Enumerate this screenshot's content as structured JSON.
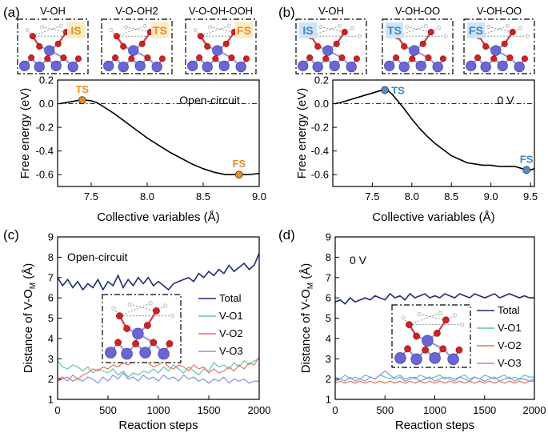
{
  "figure": {
    "colors": {
      "axis": "#000000",
      "ts_orange": "#f08a24",
      "fs_blue": "#4f8fcf",
      "label_orange": "#f08a24",
      "label_blue": "#3d86c6",
      "badge_orange_bg": "#fdebc2",
      "badge_blue_bg": "#cfe3f6",
      "total": "#1f2a7a",
      "o1": "#5fc7b0",
      "o2": "#e8735e",
      "o3": "#8a8ee8",
      "atom_v": "#6b66d6",
      "atom_o": "#d42020",
      "atom_h": "#f2f2f2"
    }
  },
  "chart_data": [
    {
      "id": "a",
      "panel_label": "(a)",
      "type": "line",
      "xlabel": "Collective variables (Å)",
      "ylabel": "Free energy (eV)",
      "xlim": [
        7.2,
        9.0
      ],
      "ylim": [
        -0.7,
        0.2
      ],
      "xticks": [
        7.5,
        8.0,
        8.5,
        9.0
      ],
      "xtick_labels": [
        "7.5",
        "8.0",
        "8.5",
        "9.0"
      ],
      "yticks": [
        -0.6,
        -0.4,
        -0.2,
        0.0,
        0.2
      ],
      "ytick_labels": [
        "-0.6",
        "-0.4",
        "-0.2",
        "0.0",
        "0.2"
      ],
      "reference_line_y": 0.0,
      "condition_label": "Open-circuit",
      "x": [
        7.22,
        7.28,
        7.34,
        7.4,
        7.45,
        7.5,
        7.55,
        7.6,
        7.7,
        7.8,
        7.9,
        8.0,
        8.1,
        8.2,
        8.3,
        8.4,
        8.5,
        8.6,
        8.7,
        8.75,
        8.8,
        8.85,
        8.9,
        8.95,
        9.0
      ],
      "y": [
        0.0,
        0.01,
        0.02,
        0.03,
        0.03,
        0.025,
        0.01,
        -0.02,
        -0.08,
        -0.15,
        -0.22,
        -0.29,
        -0.35,
        -0.41,
        -0.46,
        -0.51,
        -0.55,
        -0.58,
        -0.6,
        -0.6,
        -0.6,
        -0.6,
        -0.6,
        -0.595,
        -0.59
      ],
      "points": [
        {
          "label": "TS",
          "x": 7.42,
          "y": 0.03,
          "color": "#f08a24"
        },
        {
          "label": "FS",
          "x": 8.82,
          "y": -0.6,
          "color": "#f08a24"
        }
      ],
      "snapshots": [
        {
          "title": "V-OH",
          "badge": "IS"
        },
        {
          "title": "V-O-OH2",
          "badge": "TS"
        },
        {
          "title": "V-O-OH-OOH",
          "badge": "FS"
        }
      ]
    },
    {
      "id": "b",
      "panel_label": "(b)",
      "type": "line",
      "xlabel": "Collective variables (Å)",
      "ylabel": "Free energy (eV)",
      "xlim": [
        7.0,
        9.55
      ],
      "ylim": [
        -0.7,
        0.2
      ],
      "xticks": [
        7.5,
        8.0,
        8.5,
        9.0,
        9.5
      ],
      "xtick_labels": [
        "7.5",
        "8.0",
        "8.5",
        "9.0",
        "9.5"
      ],
      "yticks": [
        -0.6,
        -0.4,
        -0.2,
        0.0,
        0.2
      ],
      "ytick_labels": [
        "-0.6",
        "-0.4",
        "-0.2",
        "0.0",
        "0.2"
      ],
      "reference_line_y": 0.0,
      "condition_label": "0 V",
      "x": [
        7.02,
        7.1,
        7.2,
        7.3,
        7.4,
        7.5,
        7.6,
        7.66,
        7.7,
        7.75,
        7.8,
        7.9,
        8.0,
        8.1,
        8.2,
        8.3,
        8.4,
        8.5,
        8.6,
        8.7,
        8.8,
        8.9,
        9.0,
        9.1,
        9.2,
        9.3,
        9.4,
        9.45,
        9.5,
        9.55
      ],
      "y": [
        0.0,
        0.01,
        0.03,
        0.05,
        0.07,
        0.09,
        0.11,
        0.12,
        0.11,
        0.08,
        0.04,
        -0.04,
        -0.13,
        -0.21,
        -0.28,
        -0.34,
        -0.39,
        -0.44,
        -0.47,
        -0.5,
        -0.51,
        -0.52,
        -0.52,
        -0.53,
        -0.53,
        -0.53,
        -0.55,
        -0.56,
        -0.56,
        -0.55
      ],
      "points": [
        {
          "label": "TS",
          "x": 7.66,
          "y": 0.115,
          "color": "#4f8fcf"
        },
        {
          "label": "FS",
          "x": 9.45,
          "y": -0.56,
          "color": "#4f8fcf"
        }
      ],
      "snapshots": [
        {
          "title": "V-OH",
          "badge": "IS"
        },
        {
          "title": "V-OH-OO",
          "badge": "TS"
        },
        {
          "title": "V-OH-OO",
          "badge": "FS"
        }
      ]
    },
    {
      "id": "c",
      "panel_label": "(c)",
      "type": "line",
      "xlabel": "Reaction steps",
      "ylabel": "Distance of V-O",
      "ylabel_sub": "M",
      "ylabel_unit": " (Å)",
      "xlim": [
        0,
        2000
      ],
      "ylim": [
        1,
        9
      ],
      "xticks": [
        0,
        500,
        1000,
        1500,
        2000
      ],
      "xtick_labels": [
        "0",
        "500",
        "1000",
        "1500",
        "2000"
      ],
      "yticks": [
        1,
        2,
        3,
        4,
        5,
        6,
        7,
        8,
        9
      ],
      "ytick_labels": [
        "1",
        "2",
        "3",
        "4",
        "5",
        "6",
        "7",
        "8",
        "9"
      ],
      "condition_label": "Open-circuit",
      "x": [
        0,
        50,
        100,
        150,
        200,
        250,
        300,
        350,
        400,
        450,
        500,
        550,
        600,
        650,
        700,
        750,
        800,
        850,
        900,
        950,
        1000,
        1050,
        1100,
        1150,
        1200,
        1250,
        1300,
        1350,
        1400,
        1450,
        1500,
        1550,
        1600,
        1650,
        1700,
        1750,
        1800,
        1850,
        1900,
        1950,
        2000
      ],
      "series": [
        {
          "name": "Total",
          "color": "#1f2a7a",
          "values": [
            7.0,
            6.6,
            6.9,
            6.5,
            6.8,
            6.4,
            6.7,
            6.5,
            6.9,
            6.4,
            6.8,
            6.6,
            7.1,
            6.5,
            6.9,
            6.6,
            7.0,
            6.7,
            7.0,
            6.6,
            6.8,
            6.6,
            6.4,
            6.7,
            6.8,
            6.9,
            7.0,
            6.8,
            7.2,
            7.0,
            7.3,
            7.1,
            7.4,
            7.2,
            7.6,
            7.3,
            7.5,
            7.7,
            7.4,
            7.6,
            8.2
          ]
        },
        {
          "name": "V-O1",
          "color": "#5fc7b0",
          "values": [
            2.9,
            2.6,
            2.5,
            2.7,
            2.6,
            2.4,
            2.6,
            2.3,
            2.5,
            2.4,
            2.3,
            2.5,
            2.2,
            2.4,
            2.1,
            2.3,
            2.2,
            2.4,
            2.3,
            2.5,
            2.3,
            2.6,
            2.4,
            2.7,
            2.5,
            2.3,
            2.6,
            2.4,
            2.2,
            2.5,
            2.4,
            2.8,
            2.6,
            2.7,
            2.5,
            2.8,
            2.6,
            2.9,
            2.7,
            2.9,
            3.0
          ]
        },
        {
          "name": "V-O2",
          "color": "#e8735e",
          "values": [
            1.9,
            2.0,
            2.1,
            1.9,
            2.0,
            2.2,
            2.3,
            2.5,
            2.4,
            2.6,
            2.5,
            2.7,
            2.6,
            2.8,
            2.7,
            2.9,
            2.8,
            3.0,
            2.8,
            2.6,
            2.7,
            2.9,
            2.6,
            2.5,
            2.7,
            2.6,
            2.4,
            2.7,
            2.5,
            2.6,
            2.3,
            2.5,
            2.3,
            2.4,
            2.6,
            2.4,
            2.7,
            2.5,
            2.8,
            2.7,
            3.1
          ]
        },
        {
          "name": "V-O3",
          "color": "#8a8ee8",
          "values": [
            2.0,
            2.1,
            1.9,
            2.2,
            2.0,
            1.9,
            2.1,
            2.0,
            1.8,
            2.1,
            1.9,
            2.2,
            2.0,
            2.3,
            2.0,
            2.1,
            1.9,
            2.2,
            2.0,
            2.1,
            1.9,
            2.2,
            2.0,
            2.1,
            1.9,
            2.2,
            2.0,
            2.1,
            1.9,
            2.0,
            1.8,
            2.0,
            1.9,
            2.1,
            1.8,
            2.0,
            1.9,
            2.0,
            1.8,
            1.9,
            1.9
          ]
        }
      ]
    },
    {
      "id": "d",
      "panel_label": "(d)",
      "type": "line",
      "xlabel": "Reaction steps",
      "ylabel": "Distance of V-O",
      "ylabel_sub": "M",
      "ylabel_unit": " (Å)",
      "xlim": [
        0,
        2000
      ],
      "ylim": [
        1,
        9
      ],
      "xticks": [
        0,
        500,
        1000,
        1500,
        2000
      ],
      "xtick_labels": [
        "0",
        "500",
        "1000",
        "1500",
        "2000"
      ],
      "yticks": [
        1,
        2,
        3,
        4,
        5,
        6,
        7,
        8,
        9
      ],
      "ytick_labels": [
        "1",
        "2",
        "3",
        "4",
        "5",
        "6",
        "7",
        "8",
        "9"
      ],
      "condition_label": "0 V",
      "x": [
        0,
        50,
        100,
        150,
        200,
        250,
        300,
        350,
        400,
        450,
        500,
        550,
        600,
        650,
        700,
        750,
        800,
        850,
        900,
        950,
        1000,
        1050,
        1100,
        1150,
        1200,
        1250,
        1300,
        1350,
        1400,
        1450,
        1500,
        1550,
        1600,
        1650,
        1700,
        1750,
        1800,
        1850,
        1900,
        1950,
        2000
      ],
      "series": [
        {
          "name": "Total",
          "color": "#1f2a7a",
          "values": [
            5.8,
            5.9,
            5.7,
            6.0,
            5.8,
            5.9,
            6.0,
            5.9,
            6.1,
            6.0,
            5.9,
            6.2,
            6.0,
            6.1,
            5.9,
            6.2,
            6.0,
            6.1,
            6.2,
            6.0,
            6.1,
            6.0,
            6.2,
            6.1,
            6.0,
            6.2,
            6.1,
            6.0,
            6.2,
            6.1,
            6.0,
            6.1,
            6.2,
            6.0,
            6.1,
            6.2,
            6.1,
            6.0,
            6.1,
            6.0,
            6.0
          ]
        },
        {
          "name": "V-O1",
          "color": "#5fc7b0",
          "values": [
            2.1,
            2.0,
            2.2,
            2.0,
            2.1,
            2.0,
            2.2,
            2.1,
            2.0,
            2.2,
            2.1,
            2.0,
            2.1,
            2.2,
            2.0,
            2.1,
            2.0,
            2.2,
            2.1,
            2.0,
            2.1,
            2.2,
            2.0,
            2.1,
            2.0,
            2.1,
            2.2,
            2.0,
            2.1,
            2.0,
            2.2,
            2.1,
            2.0,
            2.1,
            2.2,
            2.0,
            2.1,
            2.0,
            2.2,
            2.1,
            2.1
          ]
        },
        {
          "name": "V-O2",
          "color": "#e8735e",
          "values": [
            1.8,
            1.9,
            1.8,
            1.9,
            1.8,
            1.9,
            1.8,
            1.9,
            1.8,
            1.9,
            1.8,
            1.9,
            1.8,
            1.9,
            1.8,
            1.9,
            1.8,
            1.9,
            1.8,
            1.9,
            1.8,
            1.9,
            1.8,
            1.9,
            1.8,
            1.9,
            1.8,
            1.9,
            1.8,
            1.9,
            1.8,
            1.9,
            1.8,
            1.9,
            1.8,
            1.9,
            1.8,
            1.9,
            1.8,
            1.9,
            1.9
          ]
        },
        {
          "name": "V-O3",
          "color": "#8a8ee8",
          "values": [
            1.9,
            2.0,
            1.9,
            2.1,
            1.9,
            2.0,
            1.9,
            2.1,
            2.0,
            2.2,
            2.4,
            2.2,
            2.0,
            2.1,
            1.9,
            2.0,
            2.1,
            1.9,
            2.0,
            2.1,
            1.9,
            2.0,
            2.1,
            2.0,
            1.9,
            2.1,
            2.0,
            1.9,
            2.1,
            2.0,
            1.9,
            2.0,
            2.1,
            1.9,
            2.0,
            2.1,
            1.9,
            2.0,
            2.0,
            1.9,
            2.0
          ]
        }
      ]
    }
  ]
}
